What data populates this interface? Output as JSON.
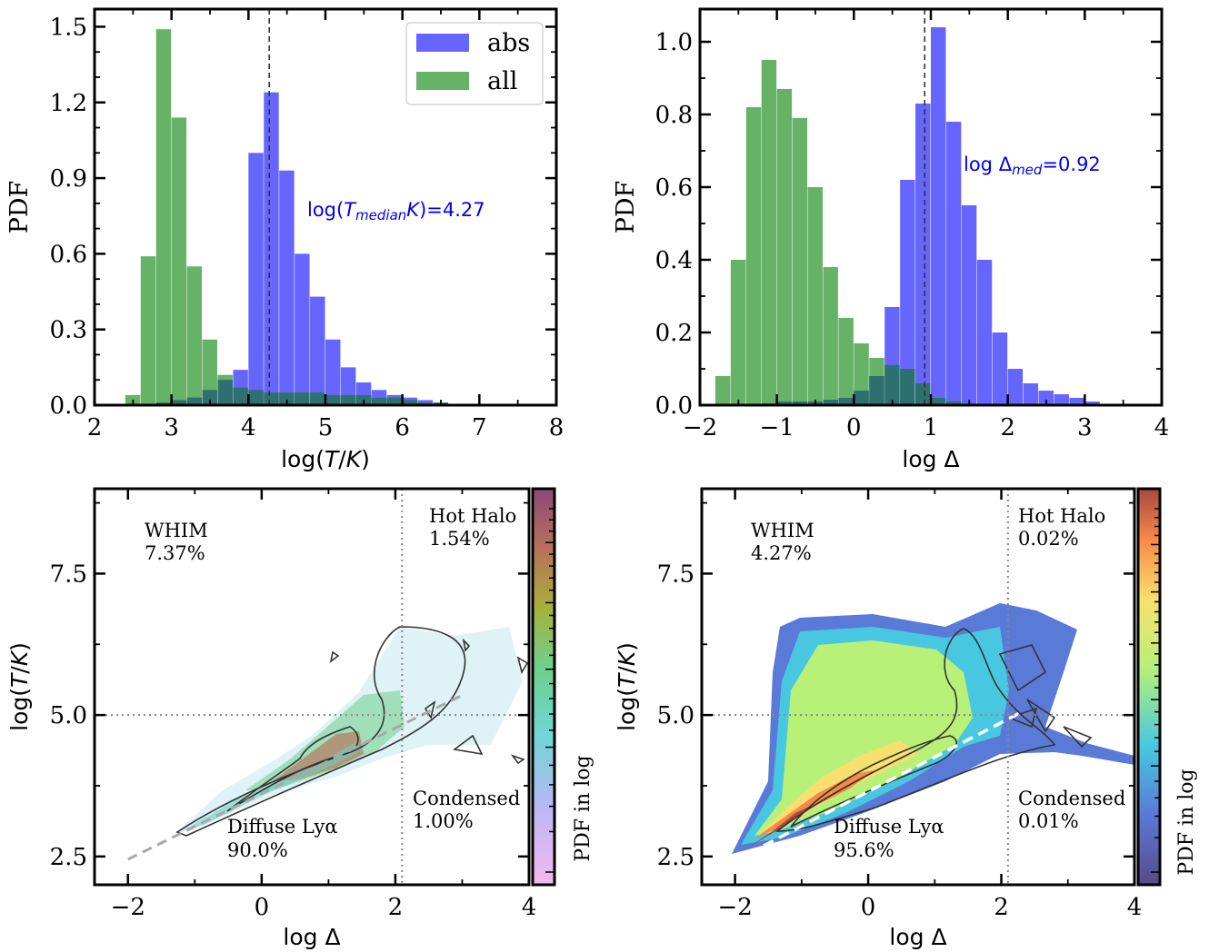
{
  "colors": {
    "abs": "#6666ff",
    "all": "#66b266",
    "overlap": "#2e7070",
    "annotation": "#0000ee",
    "contour": "#333333",
    "guide": "#888888"
  },
  "chart_data": [
    {
      "type": "histogram",
      "xlabel": "log(T/K)",
      "ylabel": "PDF",
      "xlim": [
        2,
        8
      ],
      "ylim": [
        0,
        1.57
      ],
      "xticks": [
        "2",
        "3",
        "4",
        "5",
        "6",
        "7",
        "8"
      ],
      "yticks": [
        "0.0",
        "0.3",
        "0.6",
        "0.9",
        "1.2",
        "1.5"
      ],
      "legend_position": "top-right",
      "median_line": 4.27,
      "annotation": "log(Tmedian/K)=4.27",
      "annotation_parts": {
        "pre": "log(",
        "var": "T",
        "sub": "median",
        "post": "/K)=4.27"
      },
      "bin_width": 0.2,
      "series": [
        {
          "name": "abs",
          "x": [
            2.4,
            2.6,
            2.8,
            3.0,
            3.2,
            3.4,
            3.6,
            3.8,
            4.0,
            4.2,
            4.4,
            4.6,
            4.8,
            5.0,
            5.2,
            5.4,
            5.6,
            5.8,
            6.0,
            6.2,
            6.4
          ],
          "values": [
            0.0,
            0.0,
            0.01,
            0.02,
            0.03,
            0.06,
            0.1,
            0.14,
            1.0,
            1.24,
            0.93,
            0.6,
            0.43,
            0.26,
            0.15,
            0.09,
            0.06,
            0.04,
            0.03,
            0.02,
            0.01
          ]
        },
        {
          "name": "all",
          "x": [
            2.4,
            2.6,
            2.8,
            3.0,
            3.2,
            3.4,
            3.6,
            3.8,
            4.0,
            4.2,
            4.4,
            4.6,
            4.8,
            5.0,
            5.2,
            5.4,
            5.6,
            5.8,
            6.0,
            6.2,
            6.4
          ],
          "values": [
            0.04,
            0.59,
            1.49,
            1.14,
            0.55,
            0.26,
            0.12,
            0.07,
            0.06,
            0.05,
            0.05,
            0.05,
            0.05,
            0.04,
            0.04,
            0.04,
            0.03,
            0.03,
            0.02,
            0.01,
            0.01
          ]
        }
      ]
    },
    {
      "type": "histogram",
      "xlabel": "log Δ",
      "ylabel": "PDF",
      "xlim": [
        -2,
        4
      ],
      "ylim": [
        0,
        1.09
      ],
      "xticks": [
        "−2",
        "−1",
        "0",
        "1",
        "2",
        "3",
        "4"
      ],
      "yticks": [
        "0.0",
        "0.2",
        "0.4",
        "0.6",
        "0.8",
        "1.0"
      ],
      "median_line": 0.92,
      "annotation": "log Δmed=0.92",
      "annotation_parts": {
        "pre": "log Δ",
        "sub": "med",
        "post": "=0.92"
      },
      "bin_width": 0.2,
      "series": [
        {
          "name": "abs",
          "x": [
            -1.8,
            -1.6,
            -1.4,
            -1.2,
            -1.0,
            -0.8,
            -0.6,
            -0.4,
            -0.2,
            0.0,
            0.2,
            0.4,
            0.6,
            0.8,
            1.0,
            1.2,
            1.4,
            1.6,
            1.8,
            2.0,
            2.2,
            2.4,
            2.6,
            2.8,
            3.0
          ],
          "values": [
            0.0,
            0.0,
            0.0,
            0.005,
            0.01,
            0.01,
            0.01,
            0.015,
            0.02,
            0.04,
            0.08,
            0.27,
            0.62,
            0.83,
            1.04,
            0.78,
            0.55,
            0.4,
            0.2,
            0.1,
            0.06,
            0.04,
            0.03,
            0.02,
            0.01
          ]
        },
        {
          "name": "all",
          "x": [
            -1.8,
            -1.6,
            -1.4,
            -1.2,
            -1.0,
            -0.8,
            -0.6,
            -0.4,
            -0.2,
            0.0,
            0.2,
            0.4,
            0.6,
            0.8,
            1.0,
            1.2,
            1.4,
            1.6,
            1.8,
            2.0,
            2.2,
            2.4,
            2.6,
            2.8,
            3.0
          ],
          "values": [
            0.08,
            0.4,
            0.82,
            0.95,
            0.87,
            0.79,
            0.6,
            0.38,
            0.24,
            0.17,
            0.13,
            0.11,
            0.1,
            0.06,
            0.02,
            0.01,
            0.0,
            0.0,
            0.0,
            0.0,
            0.0,
            0.0,
            0.0,
            0.0,
            0.0
          ]
        }
      ]
    },
    {
      "type": "heatmap",
      "xlabel": "log Δ",
      "ylabel": "log(T/K)",
      "xlim": [
        -2.5,
        4
      ],
      "ylim": [
        2.0,
        9.0
      ],
      "xticks": [
        "−2",
        "0",
        "2",
        "4"
      ],
      "yticks": [
        "2.5",
        "5.0",
        "7.5"
      ],
      "divider_x": 2.1,
      "divider_y": 5.0,
      "colorbar_label": "PDF in log",
      "regions": [
        {
          "name": "WHIM",
          "value": "7.37%"
        },
        {
          "name": "Hot Halo",
          "value": "1.54%"
        },
        {
          "name": "Diffuse Lyα",
          "value": "90.0%"
        },
        {
          "name": "Condensed",
          "value": "1.00%"
        }
      ],
      "fit_line": [
        [
          -2.0,
          2.45
        ],
        [
          3.0,
          5.35
        ]
      ]
    },
    {
      "type": "heatmap",
      "xlabel": "log Δ",
      "ylabel": "log(T/K)",
      "xlim": [
        -2.5,
        4
      ],
      "ylim": [
        2.0,
        9.0
      ],
      "xticks": [
        "−2",
        "0",
        "2",
        "4"
      ],
      "yticks": [
        "2.5",
        "5.0",
        "7.5"
      ],
      "divider_x": 2.1,
      "divider_y": 5.0,
      "colorbar_label": "PDF in log",
      "regions": [
        {
          "name": "WHIM",
          "value": "4.27%"
        },
        {
          "name": "Hot Halo",
          "value": "0.02%"
        },
        {
          "name": "Diffuse Lyα",
          "value": "95.6%"
        },
        {
          "name": "Condensed",
          "value": "0.01%"
        }
      ],
      "fit_line": [
        [
          -1.8,
          2.55
        ],
        [
          2.3,
          5.05
        ]
      ]
    }
  ]
}
